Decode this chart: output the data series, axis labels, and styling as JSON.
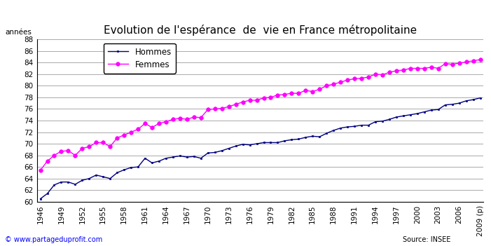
{
  "title": "Evolution de l'espérance  de  vie en France métropolitaine",
  "ylabel": "années",
  "source_text": "Source: INSEE",
  "copyright_text": "© www.partageduprofit.com",
  "xlim_left": 1945.5,
  "xlim_right": 2009.5,
  "ylim_bottom": 60,
  "ylim_top": 88,
  "yticks": [
    60,
    62,
    64,
    66,
    68,
    70,
    72,
    74,
    76,
    78,
    80,
    82,
    84,
    86,
    88
  ],
  "xtick_labels": [
    "1946",
    "1949",
    "1952",
    "1955",
    "1958",
    "1961",
    "1964",
    "1967",
    "1970",
    "1973",
    "1976",
    "1979",
    "1982",
    "1985",
    "1988",
    "1991",
    "1994",
    "1997",
    "2000",
    "2003",
    "2006",
    "2009 (p)"
  ],
  "xtick_positions": [
    1946,
    1949,
    1952,
    1955,
    1958,
    1961,
    1964,
    1967,
    1970,
    1973,
    1976,
    1979,
    1982,
    1985,
    1988,
    1991,
    1994,
    1997,
    2000,
    2003,
    2006,
    2009
  ],
  "hommes_color": "#000080",
  "femmes_color": "#FF00FF",
  "hommes_data": {
    "years": [
      1946,
      1947,
      1948,
      1949,
      1950,
      1951,
      1952,
      1953,
      1954,
      1955,
      1956,
      1957,
      1958,
      1959,
      1960,
      1961,
      1962,
      1963,
      1964,
      1965,
      1966,
      1967,
      1968,
      1969,
      1970,
      1971,
      1972,
      1973,
      1974,
      1975,
      1976,
      1977,
      1978,
      1979,
      1980,
      1981,
      1982,
      1983,
      1984,
      1985,
      1986,
      1987,
      1988,
      1989,
      1990,
      1991,
      1992,
      1993,
      1994,
      1995,
      1996,
      1997,
      1998,
      1999,
      2000,
      2001,
      2002,
      2003,
      2004,
      2005,
      2006,
      2007,
      2008,
      2009
    ],
    "values": [
      60.5,
      61.4,
      62.9,
      63.4,
      63.4,
      63.0,
      63.7,
      64.0,
      64.6,
      64.3,
      64.0,
      65.0,
      65.5,
      65.9,
      66.0,
      67.5,
      66.7,
      67.0,
      67.5,
      67.7,
      67.9,
      67.7,
      67.8,
      67.5,
      68.4,
      68.5,
      68.8,
      69.2,
      69.6,
      69.9,
      69.8,
      70.0,
      70.2,
      70.2,
      70.2,
      70.5,
      70.7,
      70.8,
      71.1,
      71.3,
      71.2,
      71.8,
      72.3,
      72.7,
      72.9,
      73.0,
      73.2,
      73.2,
      73.8,
      73.9,
      74.2,
      74.6,
      74.8,
      75.0,
      75.2,
      75.5,
      75.8,
      75.9,
      76.7,
      76.8,
      77.0,
      77.4,
      77.6,
      77.9
    ]
  },
  "femmes_data": {
    "years": [
      1946,
      1947,
      1948,
      1949,
      1950,
      1951,
      1952,
      1953,
      1954,
      1955,
      1956,
      1957,
      1958,
      1959,
      1960,
      1961,
      1962,
      1963,
      1964,
      1965,
      1966,
      1967,
      1968,
      1969,
      1970,
      1971,
      1972,
      1973,
      1974,
      1975,
      1976,
      1977,
      1978,
      1979,
      1980,
      1981,
      1982,
      1983,
      1984,
      1985,
      1986,
      1987,
      1988,
      1989,
      1990,
      1991,
      1992,
      1993,
      1994,
      1995,
      1996,
      1997,
      1998,
      1999,
      2000,
      2001,
      2002,
      2003,
      2004,
      2005,
      2006,
      2007,
      2008,
      2009
    ],
    "values": [
      65.4,
      67.0,
      68.0,
      68.7,
      68.8,
      68.0,
      69.2,
      69.5,
      70.2,
      70.2,
      69.5,
      71.0,
      71.5,
      72.0,
      72.5,
      73.5,
      72.8,
      73.5,
      73.8,
      74.2,
      74.4,
      74.2,
      74.6,
      74.5,
      75.9,
      76.0,
      76.1,
      76.4,
      76.8,
      77.2,
      77.5,
      77.5,
      77.9,
      78.0,
      78.4,
      78.5,
      78.7,
      78.7,
      79.2,
      79.0,
      79.4,
      80.0,
      80.3,
      80.6,
      81.0,
      81.2,
      81.3,
      81.5,
      82.0,
      81.9,
      82.3,
      82.6,
      82.7,
      83.0,
      83.0,
      83.0,
      83.2,
      83.0,
      83.8,
      83.7,
      83.9,
      84.1,
      84.3,
      84.5
    ]
  },
  "background_color": "#ffffff",
  "grid_color": "#888888",
  "title_fontsize": 11,
  "tick_fontsize": 7.5,
  "legend_fontsize": 8.5,
  "copyright_fontsize": 7,
  "source_fontsize": 7
}
